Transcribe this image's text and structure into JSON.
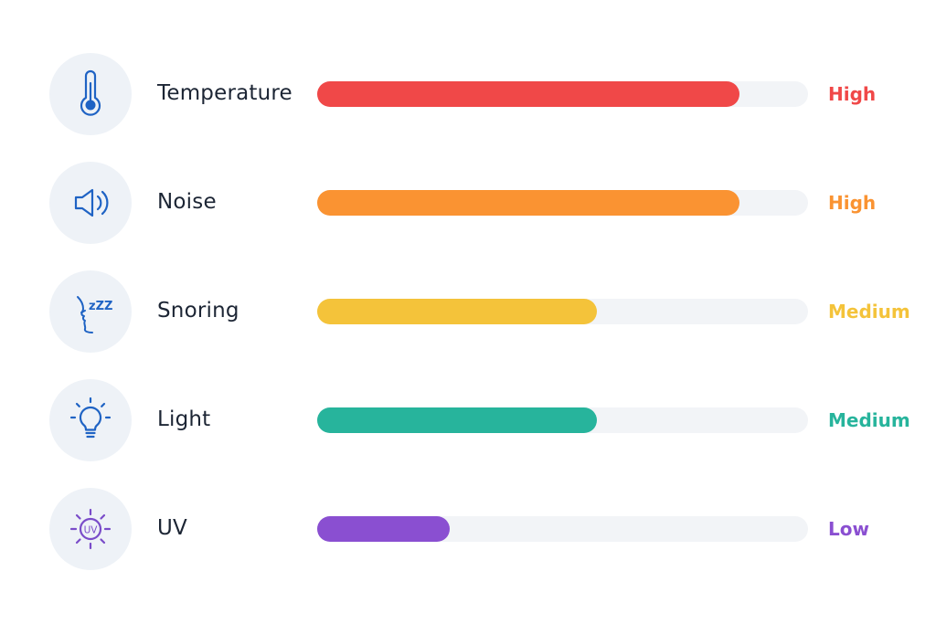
{
  "metrics": [
    {
      "label": "Temperature",
      "level": "High",
      "fill_fraction": 0.86,
      "color": "#f04848",
      "icon": "thermometer-icon",
      "icon_color": "#1f63c4"
    },
    {
      "label": "Noise",
      "level": "High",
      "fill_fraction": 0.86,
      "color": "#fa9332",
      "icon": "speaker-icon",
      "icon_color": "#1f63c4"
    },
    {
      "label": "Snoring",
      "level": "Medium",
      "fill_fraction": 0.57,
      "color": "#f4c33a",
      "icon": "snoring-face-icon",
      "icon_color": "#1f63c4",
      "icon_text": "zZZ"
    },
    {
      "label": "Light",
      "level": "Medium",
      "fill_fraction": 0.57,
      "color": "#27b49c",
      "icon": "lightbulb-icon",
      "icon_color": "#1f63c4"
    },
    {
      "label": "UV",
      "level": "Low",
      "fill_fraction": 0.27,
      "color": "#8a4fd1",
      "icon": "uv-sun-icon",
      "icon_color": "#7a4cc9",
      "icon_text": "UV"
    }
  ]
}
